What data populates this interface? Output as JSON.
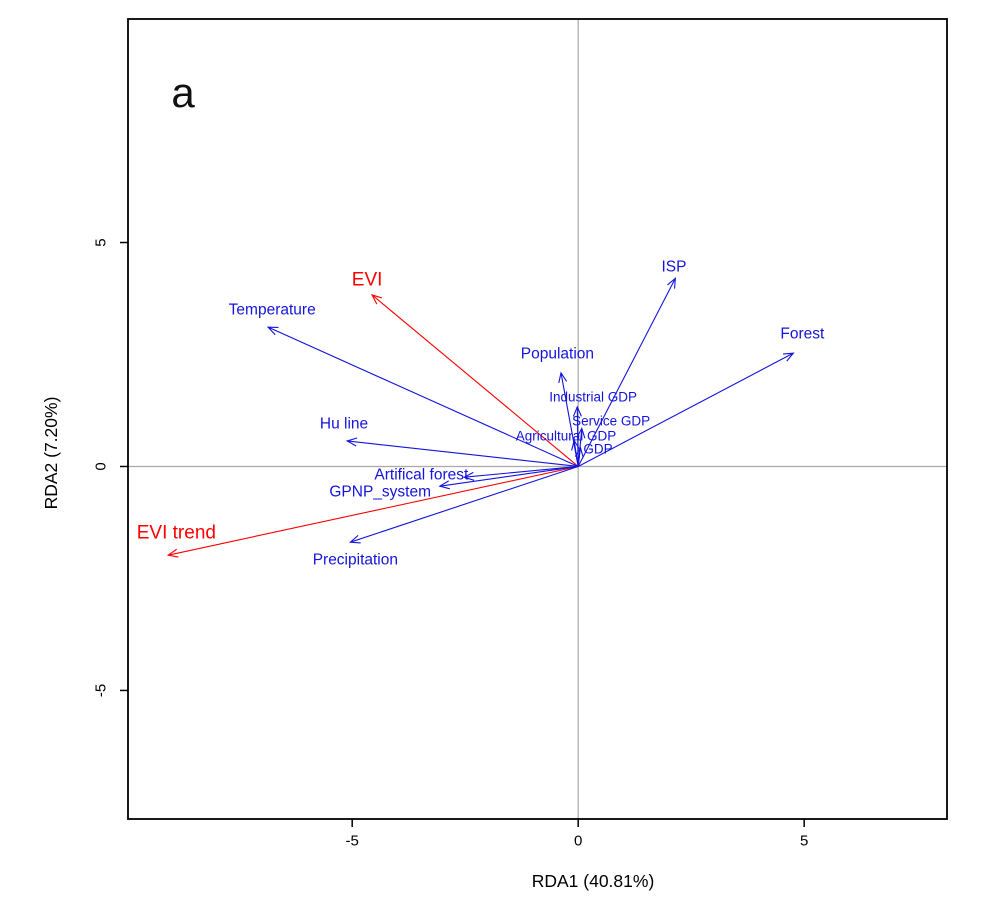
{
  "figure": {
    "panel_label": "a",
    "background": "#ffffff",
    "box_color": "#000000",
    "crosshair_color": "#a8a8a8",
    "tick_color": "#000000"
  },
  "chart_data": {
    "type": "scatter",
    "subtype": "rda-biplot-arrows",
    "title": "",
    "xlabel": "RDA1 (40.81%)",
    "ylabel": "RDA2 (7.20%)",
    "xlim": [
      -9.96,
      8.16
    ],
    "ylim": [
      -7.87,
      9.99
    ],
    "xticks": [
      "-5",
      "0",
      "5"
    ],
    "xtick_values": [
      -5,
      0,
      5
    ],
    "yticks": [
      "-5",
      "0",
      "5"
    ],
    "ytick_values": [
      -5,
      0,
      5
    ],
    "grid": false,
    "legend": "none",
    "crosshair_at": {
      "x": 0,
      "y": 0
    },
    "colors": {
      "blue": "#1414dd",
      "red": "#ff0000"
    },
    "arrows": [
      {
        "label": "EVI",
        "x": -4.56,
        "y": 3.83,
        "label_x": -4.67,
        "label_y": 4.16,
        "color": "red",
        "label_size": "large"
      },
      {
        "label": "EVI trend",
        "x": -9.07,
        "y": -1.98,
        "label_x": -8.89,
        "label_y": -1.48,
        "color": "red",
        "label_size": "large"
      },
      {
        "label": "Temperature",
        "x": -6.86,
        "y": 3.11,
        "label_x": -6.77,
        "label_y": 3.49,
        "color": "blue",
        "label_size": "normal"
      },
      {
        "label": "Hu line",
        "x": -5.11,
        "y": 0.57,
        "label_x": -5.18,
        "label_y": 0.95,
        "color": "blue",
        "label_size": "normal"
      },
      {
        "label": "Precipitation",
        "x": -5.04,
        "y": -1.69,
        "label_x": -4.93,
        "label_y": -2.09,
        "color": "blue",
        "label_size": "normal"
      },
      {
        "label": "GPNP_system",
        "x": -3.06,
        "y": -0.44,
        "label_x": -4.38,
        "label_y": -0.57,
        "color": "blue",
        "label_size": "normal"
      },
      {
        "label": "Artifical forest",
        "x": -2.52,
        "y": -0.24,
        "label_x": -3.47,
        "label_y": -0.19,
        "color": "blue",
        "label_size": "normal"
      },
      {
        "label": "Population",
        "x": -0.38,
        "y": 2.09,
        "label_x": -0.46,
        "label_y": 2.51,
        "color": "blue",
        "label_size": "normal"
      },
      {
        "label": "Industrial GDP",
        "x": -0.02,
        "y": 1.33,
        "label_x": 0.33,
        "label_y": 1.55,
        "color": "blue",
        "label_size": "small"
      },
      {
        "label": "Service GDP",
        "x": 0.08,
        "y": 0.85,
        "label_x": 0.73,
        "label_y": 1.02,
        "color": "blue",
        "label_size": "small"
      },
      {
        "label": "Agricultural GDP",
        "x": -0.09,
        "y": 0.58,
        "label_x": -0.27,
        "label_y": 0.68,
        "color": "blue",
        "label_size": "small"
      },
      {
        "label": "GDP",
        "x": 0.05,
        "y": 0.42,
        "label_x": 0.44,
        "label_y": 0.39,
        "color": "blue",
        "label_size": "small"
      },
      {
        "label": "ISP",
        "x": 2.15,
        "y": 4.2,
        "label_x": 2.12,
        "label_y": 4.45,
        "color": "blue",
        "label_size": "normal"
      },
      {
        "label": "Forest",
        "x": 4.76,
        "y": 2.53,
        "label_x": 4.96,
        "label_y": 2.96,
        "color": "blue",
        "label_size": "normal"
      }
    ]
  }
}
